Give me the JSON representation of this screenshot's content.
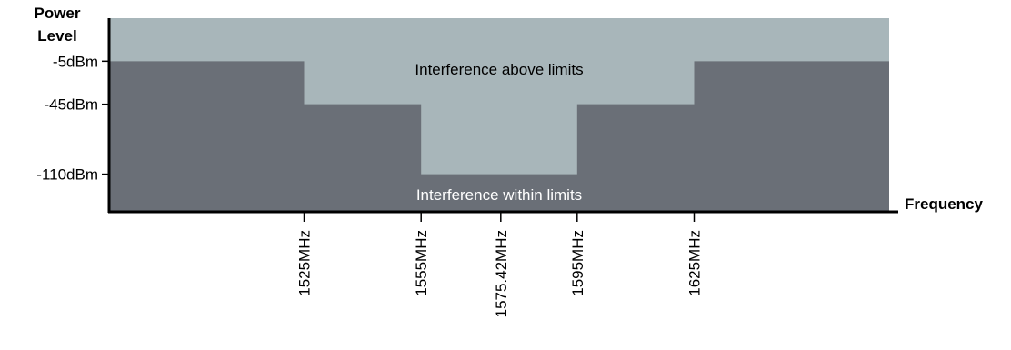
{
  "chart_data": {
    "type": "area",
    "title": "",
    "xlabel": "Frequency",
    "ylabel": "Power Level",
    "x_ticks": [
      "1525MHz",
      "1555MHz",
      "1575.42MHz",
      "1595MHz",
      "1625MHz"
    ],
    "x_tick_values": [
      1525,
      1555,
      1575.42,
      1595,
      1625
    ],
    "xlim": [
      1475,
      1675
    ],
    "y_ticks": [
      "-5dBm",
      "-45dBm",
      "-110dBm"
    ],
    "y_tick_values": [
      -5,
      -45,
      -110
    ],
    "ylim": [
      -145,
      35
    ],
    "limit_mask": {
      "x": [
        1475,
        1525,
        1525,
        1555,
        1555,
        1595,
        1595,
        1625,
        1625,
        1675
      ],
      "y": [
        -5,
        -5,
        -45,
        -45,
        -110,
        -110,
        -45,
        -45,
        -5,
        -5
      ]
    },
    "regions": {
      "above": "Interference above limits",
      "within": "Interference within limits"
    },
    "colors": {
      "above": "#a8b6ba",
      "within": "#6a6f77",
      "within_text": "#ffffff",
      "axis": "#000000"
    },
    "grid": false,
    "legend": "none"
  }
}
